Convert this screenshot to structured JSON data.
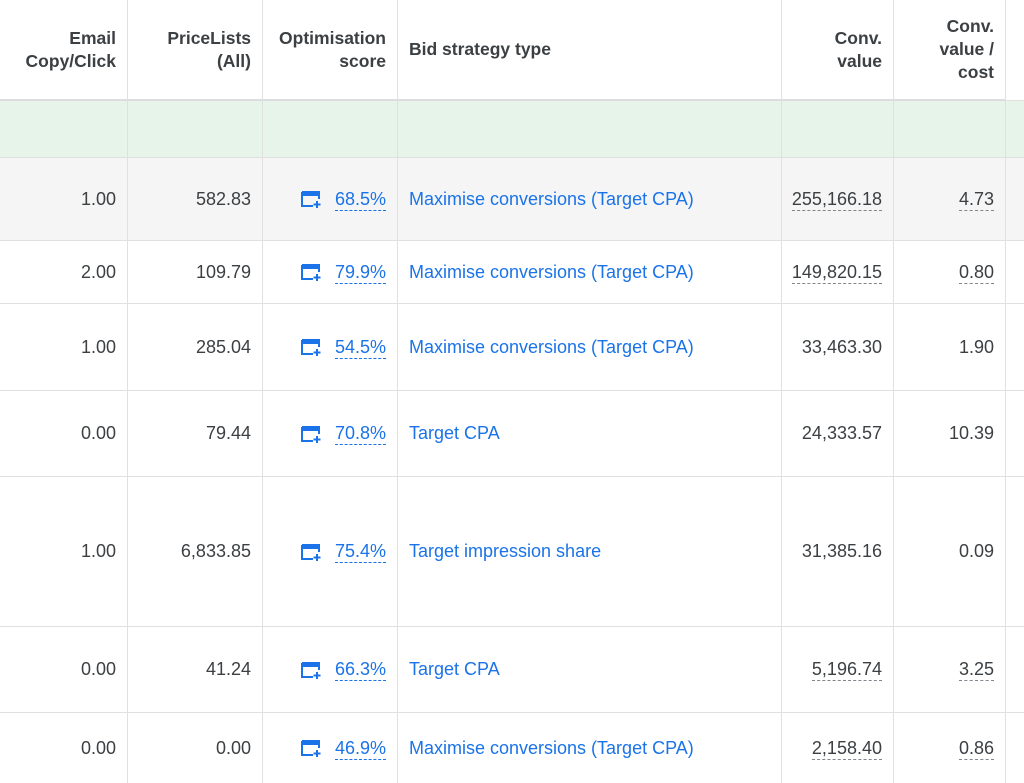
{
  "table": {
    "header": [
      [
        "Email",
        "Copy/Click"
      ],
      [
        "PriceLists",
        "(All)"
      ],
      [
        "Optimisation",
        "score"
      ],
      [
        "Bid strategy type"
      ],
      [
        "Conv.",
        "value"
      ],
      [
        "Conv.",
        "value /",
        "cost"
      ]
    ],
    "rows": [
      {
        "email": "1.00",
        "price": "582.83",
        "score": "68.5%",
        "bid": "Maximise conversions (Target CPA)",
        "value": "255,166.18",
        "ratio": "4.73",
        "dashed": true,
        "shaded": true
      },
      {
        "email": "2.00",
        "price": "109.79",
        "score": "79.9%",
        "bid": "Maximise conversions (Target CPA)",
        "value": "149,820.15",
        "ratio": "0.80",
        "dashed": true,
        "shaded": false
      },
      {
        "email": "1.00",
        "price": "285.04",
        "score": "54.5%",
        "bid": "Maximise conversions (Target CPA)",
        "value": "33,463.30",
        "ratio": "1.90",
        "dashed": false,
        "shaded": false
      },
      {
        "email": "0.00",
        "price": "79.44",
        "score": "70.8%",
        "bid": "Target CPA",
        "value": "24,333.57",
        "ratio": "10.39",
        "dashed": false,
        "shaded": false
      },
      {
        "email": "1.00",
        "price": "6,833.85",
        "score": "75.4%",
        "bid": "Target impression share",
        "value": "31,385.16",
        "ratio": "0.09",
        "dashed": false,
        "shaded": false
      },
      {
        "email": "0.00",
        "price": "41.24",
        "score": "66.3%",
        "bid": "Target CPA",
        "value": "5,196.74",
        "ratio": "3.25",
        "dashed": true,
        "shaded": false
      },
      {
        "email": "0.00",
        "price": "0.00",
        "score": "46.9%",
        "bid": "Maximise conversions (Target CPA)",
        "value": "2,158.40",
        "ratio": "0.86",
        "dashed": true,
        "shaded": false
      }
    ]
  }
}
